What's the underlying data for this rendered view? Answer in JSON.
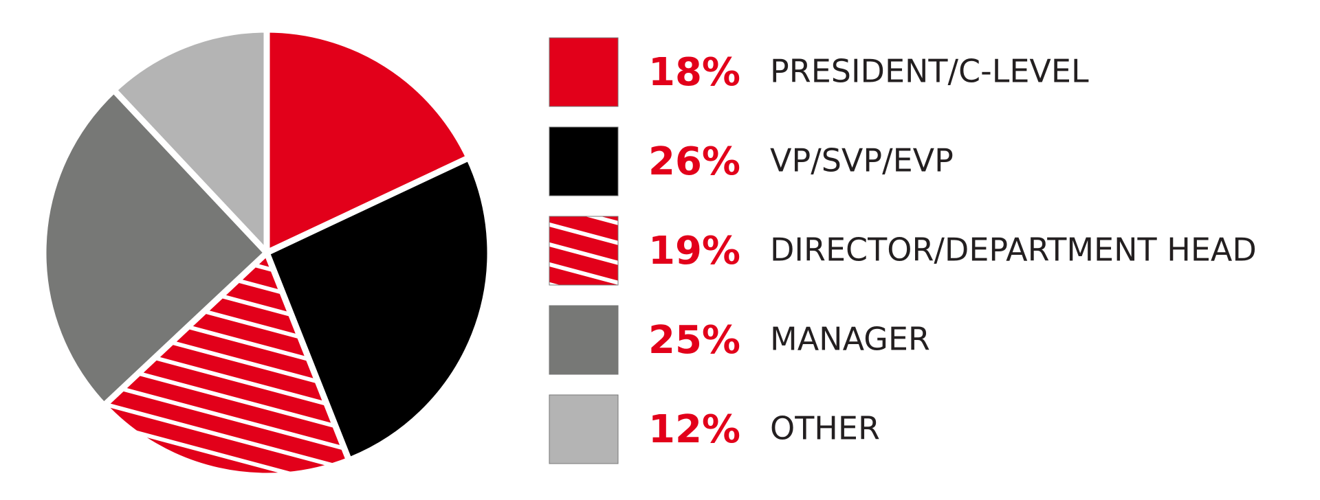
{
  "chart_data": {
    "type": "pie",
    "categories": [
      "PRESIDENT/C-LEVEL",
      "VP/SVP/EVP",
      "DIRECTOR/DEPARTMENT HEAD",
      "MANAGER",
      "OTHER"
    ],
    "values": [
      18,
      26,
      19,
      25,
      12
    ],
    "value_labels": [
      "18%",
      "26%",
      "19%",
      "25%",
      "12%"
    ],
    "colors": [
      "#e2001a",
      "#000000",
      "#e2001a",
      "#777876",
      "#b4b4b4"
    ],
    "patterns": [
      null,
      null,
      "stripes",
      null,
      null
    ],
    "legend": "right"
  }
}
